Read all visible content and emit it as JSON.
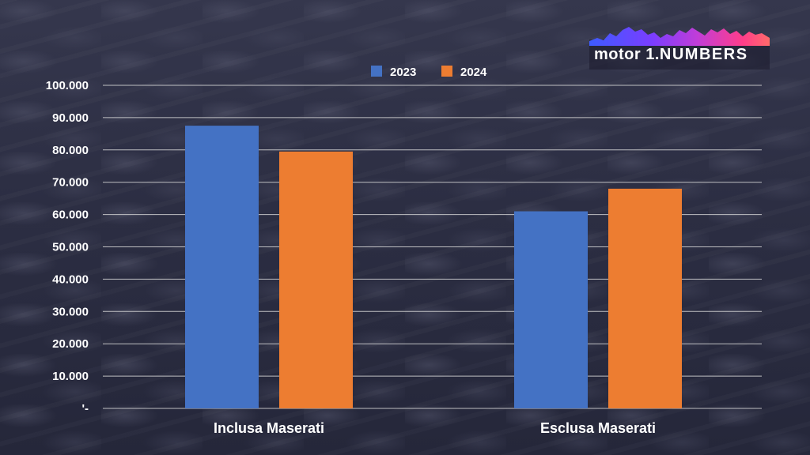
{
  "logo": {
    "brand": "motor",
    "mark": "1",
    "suffix": "NUMBERS"
  },
  "colors": {
    "series_2023": "#4472c4",
    "series_2024": "#ed7d31",
    "grid": "#d9d9d9",
    "text": "#ffffff"
  },
  "chart_data": {
    "type": "bar",
    "title": "",
    "xlabel": "",
    "ylabel": "",
    "categories": [
      "Inclusa Maserati",
      "Esclusa Maserati"
    ],
    "series": [
      {
        "name": "2023",
        "values": [
          87500,
          61000
        ]
      },
      {
        "name": "2024",
        "values": [
          79500,
          68000
        ]
      }
    ],
    "ylim": [
      0,
      100000
    ],
    "yticks": [
      {
        "value": 0,
        "label": "'-"
      },
      {
        "value": 10000,
        "label": "10.000"
      },
      {
        "value": 20000,
        "label": "20.000"
      },
      {
        "value": 30000,
        "label": "30.000"
      },
      {
        "value": 40000,
        "label": "40.000"
      },
      {
        "value": 50000,
        "label": "50.000"
      },
      {
        "value": 60000,
        "label": "60.000"
      },
      {
        "value": 70000,
        "label": "70.000"
      },
      {
        "value": 80000,
        "label": "80.000"
      },
      {
        "value": 90000,
        "label": "90.000"
      },
      {
        "value": 100000,
        "label": "100.000"
      }
    ],
    "grid": true,
    "legend": "top-center"
  }
}
